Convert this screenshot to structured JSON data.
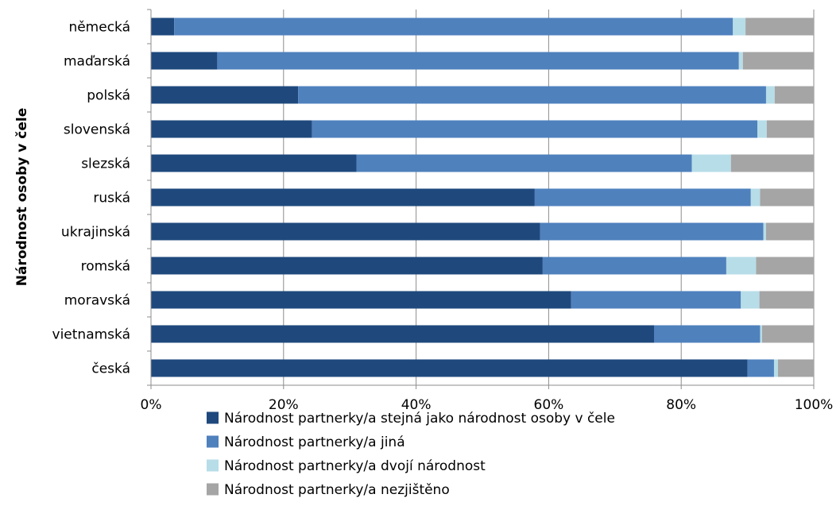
{
  "chart_data": {
    "type": "bar",
    "orientation": "horizontal",
    "stacked": "percent",
    "title": "",
    "xlabel": "",
    "ylabel": "Národnost osoby v čele",
    "categories": [
      "německá",
      "maďarská",
      "polská",
      "slovenská",
      "slezská",
      "ruská",
      "ukrajinská",
      "romská",
      "moravská",
      "vietnamská",
      "česká"
    ],
    "x_ticks": [
      "0%",
      "20%",
      "40%",
      "60%",
      "80%",
      "100%"
    ],
    "xlim": [
      0,
      100
    ],
    "grid": true,
    "legend_position": "bottom",
    "series": [
      {
        "name": "Národnost partnerky/a stejná jako národnost osoby v čele",
        "color": "#1f497d",
        "values": [
          3.5,
          10.0,
          22.2,
          24.3,
          31.0,
          57.9,
          58.7,
          59.1,
          63.4,
          75.9,
          90.0
        ]
      },
      {
        "name": "Národnost partnerky/a jiná",
        "color": "#4f81bd",
        "values": [
          84.3,
          78.7,
          70.6,
          67.2,
          50.6,
          32.6,
          33.7,
          27.7,
          25.6,
          16.0,
          4.0
        ]
      },
      {
        "name": "Národnost partnerky/a dvojí národnost",
        "color": "#b7dde8",
        "values": [
          1.9,
          0.6,
          1.3,
          1.4,
          5.9,
          1.4,
          0.4,
          4.5,
          2.8,
          0.3,
          0.6
        ]
      },
      {
        "name": "Národnost partnerky/a nezjištěno",
        "color": "#a5a5a5",
        "values": [
          10.3,
          10.7,
          5.9,
          7.1,
          12.5,
          8.1,
          7.2,
          8.7,
          8.2,
          7.8,
          5.4
        ]
      }
    ]
  }
}
